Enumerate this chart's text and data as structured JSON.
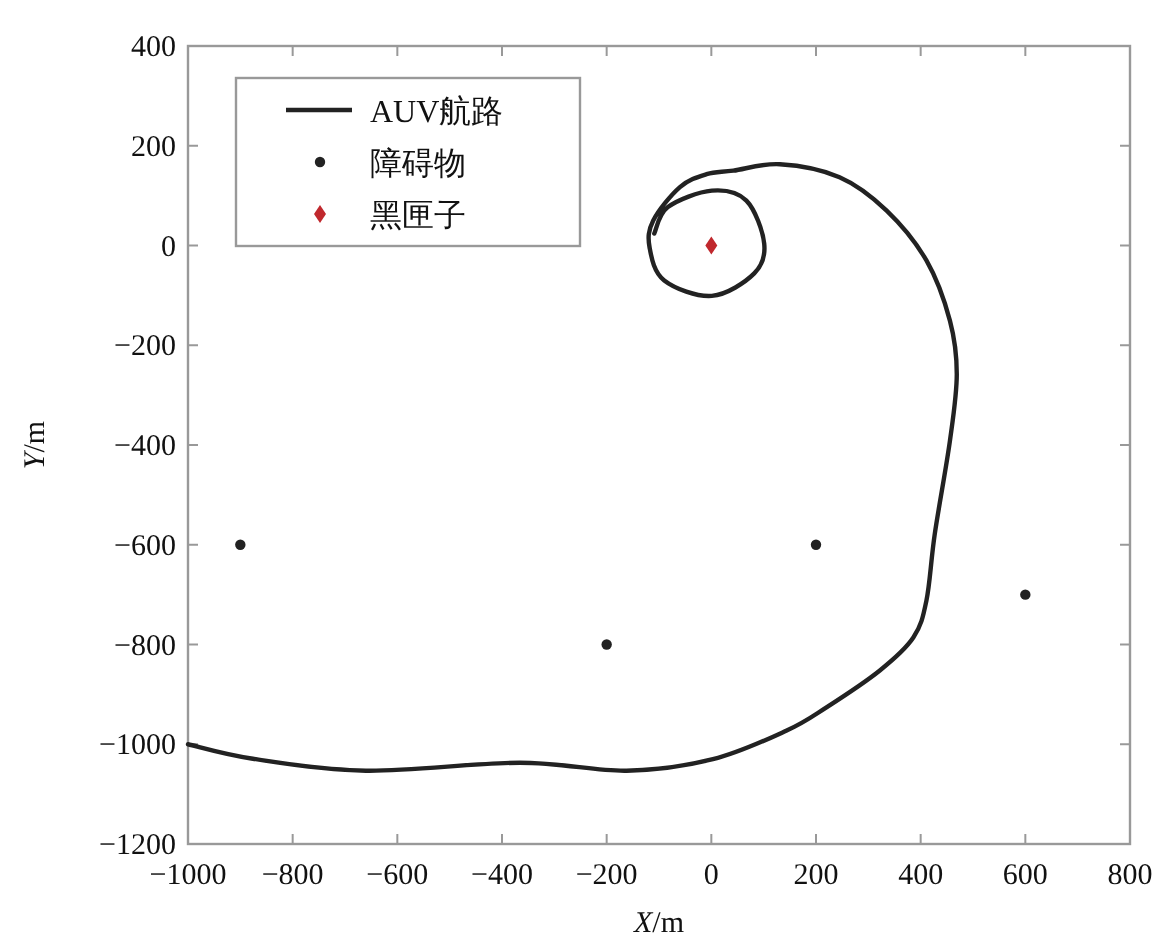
{
  "chart_data": {
    "type": "line",
    "xlabel": "X/m",
    "ylabel": "Y/m",
    "xlim": [
      -1000,
      800
    ],
    "xticks": [
      -1000,
      -800,
      -600,
      -400,
      -200,
      0,
      200,
      400,
      600,
      800
    ],
    "ylim": [
      -1200,
      400
    ],
    "yticks": [
      -1200,
      -1000,
      -800,
      -600,
      -400,
      -200,
      0,
      200,
      400
    ],
    "grid": false,
    "legend": "top left",
    "series": [
      {
        "name": "AUV航路",
        "color": "#222222",
        "marker": "none",
        "line_style": "solid",
        "x": [
          -1000,
          -876,
          -660,
          -366,
          -162,
          3,
          143,
          220,
          322,
          386,
          411,
          427,
          456,
          469,
          456,
          411,
          335,
          245,
          131,
          42,
          -9,
          -60,
          -111,
          -118,
          -90,
          1,
          82,
          101,
          67,
          1,
          -83,
          -109
        ],
        "values": [
          -1000,
          -1029,
          -1053,
          -1037,
          -1053,
          -1030,
          -973,
          -926,
          -852,
          -786,
          -712,
          -578,
          -391,
          -258,
          -151,
          -30,
          70,
          137,
          163,
          150,
          143,
          117,
          50,
          -4,
          -70,
          -101,
          -56,
          4,
          90,
          110,
          77,
          24
        ]
      },
      {
        "name": "障碍物",
        "type": "scatter",
        "color": "#222222",
        "marker": "circle",
        "x": [
          -900,
          -200,
          200,
          600
        ],
        "values": [
          -600,
          -800,
          -600,
          -700
        ]
      },
      {
        "name": "黑匣子",
        "type": "scatter",
        "color": "#c0282d",
        "marker": "diamond",
        "x": [
          0
        ],
        "values": [
          0
        ]
      }
    ]
  }
}
